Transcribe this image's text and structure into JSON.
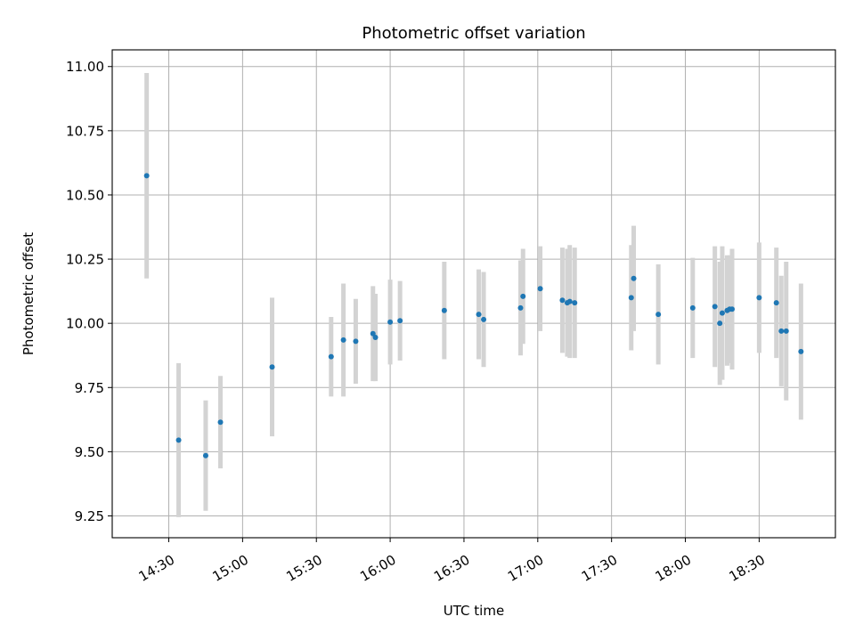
{
  "chart_data": {
    "type": "scatter",
    "title": "Photometric offset variation",
    "xlabel": "UTC time",
    "ylabel": "Photometric offset",
    "ylim": [
      9.165,
      11.065
    ],
    "xlim": [
      "14:07",
      "19:01"
    ],
    "yticks": [
      "9.25",
      "9.50",
      "9.75",
      "10.00",
      "10.25",
      "10.50",
      "10.75",
      "11.00"
    ],
    "xticks": [
      "14:30",
      "15:00",
      "15:30",
      "16:00",
      "16:30",
      "17:00",
      "17:30",
      "18:00",
      "18:30"
    ],
    "grid": true,
    "colors": {
      "point": "#1f77b4",
      "error_bar": "#d3d3d3",
      "grid": "#b0b0b0"
    },
    "points": [
      {
        "x": "14:21",
        "y": 10.575,
        "err": 0.4
      },
      {
        "x": "14:34",
        "y": 9.545,
        "err": 0.3
      },
      {
        "x": "14:45",
        "y": 9.485,
        "err": 0.215
      },
      {
        "x": "14:51",
        "y": 9.615,
        "err": 0.18
      },
      {
        "x": "15:12",
        "y": 9.83,
        "err": 0.27
      },
      {
        "x": "15:36",
        "y": 9.87,
        "err": 0.155
      },
      {
        "x": "15:41",
        "y": 9.935,
        "err": 0.22
      },
      {
        "x": "15:46",
        "y": 9.93,
        "err": 0.165
      },
      {
        "x": "15:53",
        "y": 9.96,
        "err": 0.185
      },
      {
        "x": "15:54",
        "y": 9.945,
        "err": 0.17
      },
      {
        "x": "16:00",
        "y": 10.005,
        "err": 0.165
      },
      {
        "x": "16:04",
        "y": 10.01,
        "err": 0.155
      },
      {
        "x": "16:22",
        "y": 10.05,
        "err": 0.19
      },
      {
        "x": "16:36",
        "y": 10.035,
        "err": 0.175
      },
      {
        "x": "16:38",
        "y": 10.015,
        "err": 0.185
      },
      {
        "x": "16:53",
        "y": 10.06,
        "err": 0.185
      },
      {
        "x": "16:54",
        "y": 10.105,
        "err": 0.185
      },
      {
        "x": "17:01",
        "y": 10.135,
        "err": 0.165
      },
      {
        "x": "17:10",
        "y": 10.09,
        "err": 0.205
      },
      {
        "x": "17:12",
        "y": 10.08,
        "err": 0.21
      },
      {
        "x": "17:13",
        "y": 10.085,
        "err": 0.22
      },
      {
        "x": "17:15",
        "y": 10.08,
        "err": 0.215
      },
      {
        "x": "17:38",
        "y": 10.1,
        "err": 0.205
      },
      {
        "x": "17:39",
        "y": 10.175,
        "err": 0.205
      },
      {
        "x": "17:49",
        "y": 10.035,
        "err": 0.195
      },
      {
        "x": "18:03",
        "y": 10.06,
        "err": 0.195
      },
      {
        "x": "18:12",
        "y": 10.065,
        "err": 0.235
      },
      {
        "x": "18:14",
        "y": 10.0,
        "err": 0.24
      },
      {
        "x": "18:15",
        "y": 10.04,
        "err": 0.26
      },
      {
        "x": "18:17",
        "y": 10.05,
        "err": 0.215
      },
      {
        "x": "18:18",
        "y": 10.055,
        "err": 0.21
      },
      {
        "x": "18:19",
        "y": 10.055,
        "err": 0.235
      },
      {
        "x": "18:30",
        "y": 10.1,
        "err": 0.215
      },
      {
        "x": "18:37",
        "y": 10.08,
        "err": 0.215
      },
      {
        "x": "18:39",
        "y": 9.97,
        "err": 0.215
      },
      {
        "x": "18:41",
        "y": 9.97,
        "err": 0.27
      },
      {
        "x": "18:47",
        "y": 9.89,
        "err": 0.265
      }
    ]
  }
}
